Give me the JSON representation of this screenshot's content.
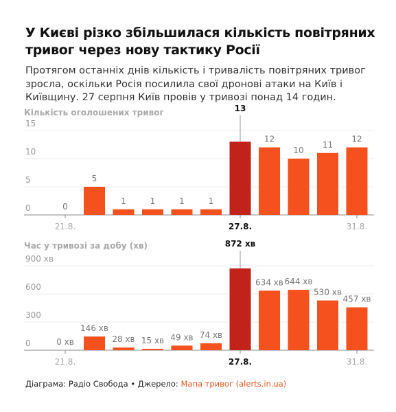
{
  "header": {
    "title": "У Києві різко збільшилася кількість повітряних тривог через нову тактику Росії",
    "subtitle": "Протягом останніх днів кількість і тривалість повітряних тривог зросла, оскільки Росія посилила свої дронові атаки на Київ і Київщину. 27 серпня Київ провів у тривозі понад 14 годин."
  },
  "chart_data": [
    {
      "type": "bar",
      "title": "Кількість оголошених тривог",
      "categories": [
        "21.8.",
        null,
        null,
        null,
        null,
        null,
        "27.8.",
        null,
        null,
        null,
        "31.8."
      ],
      "values": [
        0,
        5,
        1,
        1,
        1,
        1,
        13,
        12,
        10,
        11,
        12
      ],
      "colors": [
        "#f4511e",
        "#f4511e",
        "#f4511e",
        "#f4511e",
        "#f4511e",
        "#f4511e",
        "#c1231a",
        "#f4511e",
        "#f4511e",
        "#f4511e",
        "#f4511e"
      ],
      "ylim": [
        0,
        15
      ],
      "yticks": [
        0,
        5,
        10,
        15
      ],
      "grid": true
    },
    {
      "type": "bar",
      "title": "Час у тривозі за добу (хв)",
      "categories": [
        "21.8.",
        null,
        null,
        null,
        null,
        null,
        "27.8.",
        null,
        null,
        null,
        "31.8."
      ],
      "values": [
        0,
        146,
        28,
        15,
        49,
        74,
        872,
        634,
        644,
        530,
        457
      ],
      "value_labels": [
        "0 хв",
        "146 хв",
        "28 хв",
        "15 хв",
        "49 хв",
        "74 хв",
        "872 хв",
        "634 хв",
        "644 хв",
        "530 хв",
        "457 хв"
      ],
      "colors": [
        "#f4511e",
        "#f4511e",
        "#f4511e",
        "#f4511e",
        "#f4511e",
        "#f4511e",
        "#c1231a",
        "#f4511e",
        "#f4511e",
        "#f4511e",
        "#f4511e"
      ],
      "ylim": [
        0,
        900
      ],
      "yticks": [
        0,
        300,
        600,
        {
          "value": 900,
          "label": "900 хв"
        }
      ],
      "grid": true
    }
  ],
  "footer": {
    "credit": "Діаграма: Радіо Свобода • Джерело: ",
    "source": "Мапа тривог (alerts.in.ua)"
  }
}
